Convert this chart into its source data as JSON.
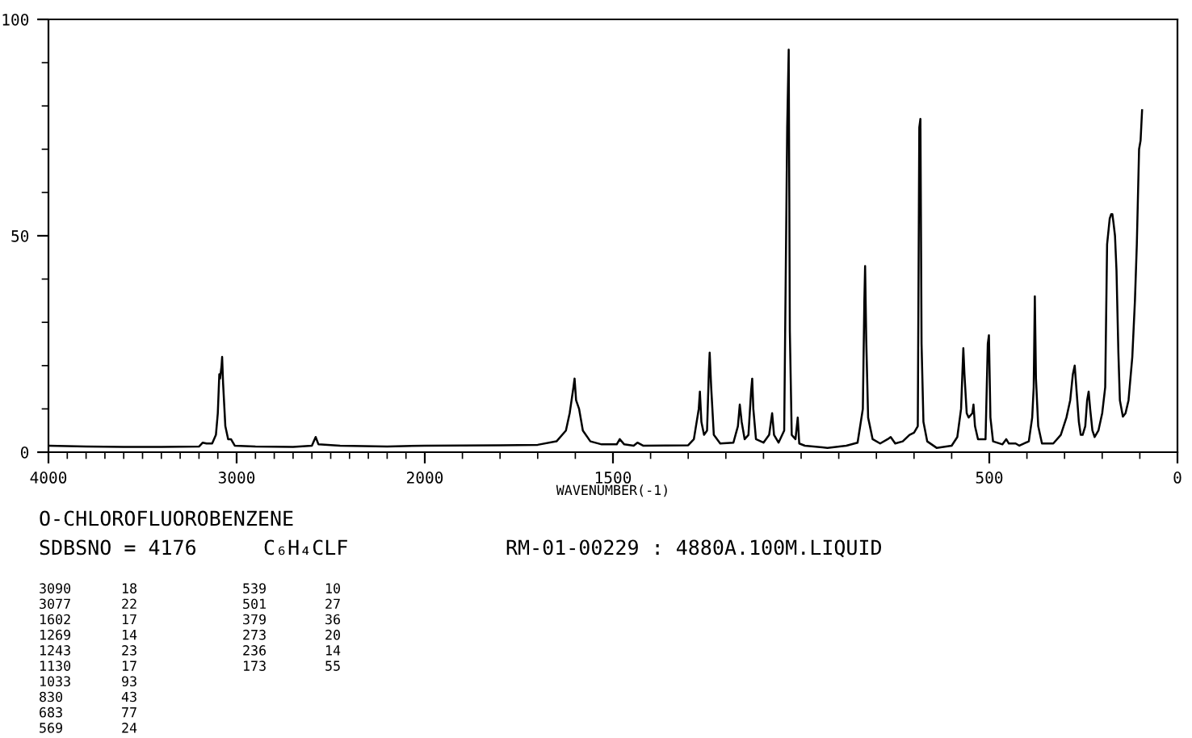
{
  "chart_data": [
    {
      "type": "line",
      "title": "O-CHLOROFLUOROBENZENE",
      "xlim": [
        4000,
        2000
      ],
      "ylim": [
        0,
        100
      ],
      "xticks": [
        4000,
        {
          "value": 3900,
          "label": null
        },
        {
          "value": 3800,
          "label": null
        },
        {
          "value": 3700,
          "label": null
        },
        {
          "value": 3600,
          "label": null
        },
        {
          "value": 3500,
          "label": null
        },
        {
          "value": 3400,
          "label": null
        },
        {
          "value": 3300,
          "label": null
        },
        {
          "value": 3200,
          "label": null
        },
        {
          "value": 3100,
          "label": null
        },
        3000,
        {
          "value": 2900,
          "label": null
        },
        {
          "value": 2800,
          "label": null
        },
        {
          "value": 2700,
          "label": null
        },
        {
          "value": 2600,
          "label": null
        },
        {
          "value": 2500,
          "label": null
        },
        {
          "value": 2400,
          "label": null
        },
        {
          "value": 2300,
          "label": null
        },
        {
          "value": 2200,
          "label": null
        },
        {
          "value": 2100,
          "label": null
        },
        2000
      ],
      "yticks": [
        0,
        {
          "value": 10,
          "label": null
        },
        {
          "value": 20,
          "label": null
        },
        {
          "value": 30,
          "label": null
        },
        {
          "value": 40,
          "label": null
        },
        50,
        {
          "value": 60,
          "label": null
        },
        {
          "value": 70,
          "label": null
        },
        {
          "value": 80,
          "label": null
        },
        {
          "value": 90,
          "label": null
        },
        100
      ],
      "grid": false,
      "legend": false,
      "series": [
        {
          "color": "#000000",
          "x": [
            4000,
            3800,
            3600,
            3400,
            3200,
            3180,
            3160,
            3130,
            3110,
            3100,
            3092,
            3088,
            3080,
            3077,
            3072,
            3060,
            3045,
            3030,
            3010,
            2900,
            2700,
            2600,
            2580,
            2565,
            2450,
            2200,
            2000
          ],
          "values": [
            1.5,
            1.3,
            1.2,
            1.2,
            1.3,
            2.2,
            2.0,
            2.0,
            4,
            9,
            18,
            17,
            20,
            22,
            16,
            6,
            3,
            3,
            1.5,
            1.3,
            1.2,
            1.5,
            3.5,
            1.8,
            1.5,
            1.3,
            1.5
          ]
        }
      ],
      "annotations": [
        "SDBSNO = 4176",
        "C₆H₄CLF",
        "RM-01-00229 : 4880A.100M.LIQUID",
        "3090 18",
        "3077 22",
        "1602 17",
        "1269 14",
        "1243 23",
        "1130 17",
        "1033 93",
        "830 43",
        "683 77",
        "569 24",
        "539 10",
        "501 27",
        "379 36",
        "273 20",
        "236 14",
        "173 55"
      ]
    },
    {
      "type": "line",
      "xlabel": "WAVENUMBER(-1)",
      "xlim": [
        2000,
        0
      ],
      "ylim": [
        0,
        100
      ],
      "tick_labels": "x",
      "grid": false,
      "legend": false,
      "xticks": [
        {
          "value": 1900,
          "label": null
        },
        {
          "value": 1800,
          "label": null
        },
        {
          "value": 1700,
          "label": null
        },
        {
          "value": 1600,
          "label": null
        },
        1500,
        {
          "value": 1400,
          "label": null
        },
        {
          "value": 1300,
          "label": null
        },
        {
          "value": 1200,
          "label": null
        },
        {
          "value": 1100,
          "label": null
        },
        {
          "value": 1000,
          "label": null
        },
        {
          "value": 900,
          "label": null
        },
        {
          "value": 800,
          "label": null
        },
        {
          "value": 700,
          "label": null
        },
        {
          "value": 600,
          "label": null
        },
        500,
        {
          "value": 400,
          "label": null
        },
        {
          "value": 300,
          "label": null
        },
        {
          "value": 200,
          "label": null
        },
        {
          "value": 100,
          "label": null
        },
        0
      ],
      "series": [
        {
          "color": "#000000",
          "x": [
            2000,
            1800,
            1700,
            1650,
            1625,
            1615,
            1605,
            1602,
            1598,
            1590,
            1580,
            1560,
            1530,
            1490,
            1482,
            1470,
            1445,
            1435,
            1420,
            1300,
            1285,
            1272,
            1269,
            1265,
            1258,
            1250,
            1245,
            1243,
            1239,
            1232,
            1215,
            1180,
            1168,
            1163,
            1158,
            1150,
            1140,
            1133,
            1130,
            1127,
            1120,
            1100,
            1085,
            1077,
            1072,
            1060,
            1045,
            1037,
            1033,
            1030,
            1025,
            1015,
            1009,
            1005,
            990,
            930,
            880,
            850,
            836,
            832,
            830,
            827,
            822,
            810,
            790,
            770,
            762,
            750,
            730,
            712,
            700,
            690,
            686,
            683,
            680,
            675,
            665,
            640,
            600,
            585,
            575,
            569,
            566,
            560,
            555,
            545,
            542,
            538,
            530,
            510,
            504,
            501,
            497,
            490,
            465,
            455,
            448,
            430,
            420,
            395,
            386,
            382,
            379,
            376,
            370,
            360,
            330,
            310,
            295,
            285,
            278,
            273,
            268,
            262,
            257,
            252,
            245,
            240,
            236,
            232,
            226,
            220,
            210,
            200,
            192,
            187,
            180,
            176,
            173,
            170,
            166,
            162,
            157,
            153,
            145,
            138,
            130,
            120,
            113,
            108,
            102,
            98,
            94
          ],
          "values": [
            1.5,
            1.6,
            1.7,
            2.5,
            5,
            9,
            15,
            17,
            12,
            10,
            5,
            2.5,
            1.8,
            1.8,
            3,
            1.8,
            1.5,
            2.2,
            1.5,
            1.6,
            3,
            10,
            14,
            7,
            4,
            5,
            19,
            23,
            15,
            4,
            2,
            2.2,
            6,
            11,
            7,
            3,
            4,
            14,
            17,
            10,
            3,
            2.2,
            4,
            9,
            4,
            2.2,
            5,
            75,
            93,
            28,
            4,
            3,
            8,
            2,
            1.5,
            1.0,
            1.5,
            2.2,
            10,
            35,
            43,
            26,
            8,
            3,
            2,
            3,
            3.5,
            2,
            2.5,
            4,
            4.5,
            6,
            75,
            77,
            25,
            7,
            2.5,
            1,
            1.5,
            3.5,
            10,
            24,
            18,
            9,
            8,
            9,
            11,
            6,
            3,
            3,
            25,
            27,
            8,
            2.5,
            1.8,
            3,
            2,
            2,
            1.5,
            2.5,
            8,
            15,
            36,
            17,
            6,
            2,
            2,
            4,
            8,
            12,
            18,
            20,
            14,
            7,
            4,
            4,
            6,
            12,
            14,
            10,
            5,
            3.5,
            5,
            9,
            15,
            48,
            54,
            55,
            55,
            53,
            50,
            42,
            23,
            12,
            8.2,
            9,
            12,
            22,
            35,
            48,
            70,
            72,
            79
          ]
        }
      ]
    }
  ]
}
